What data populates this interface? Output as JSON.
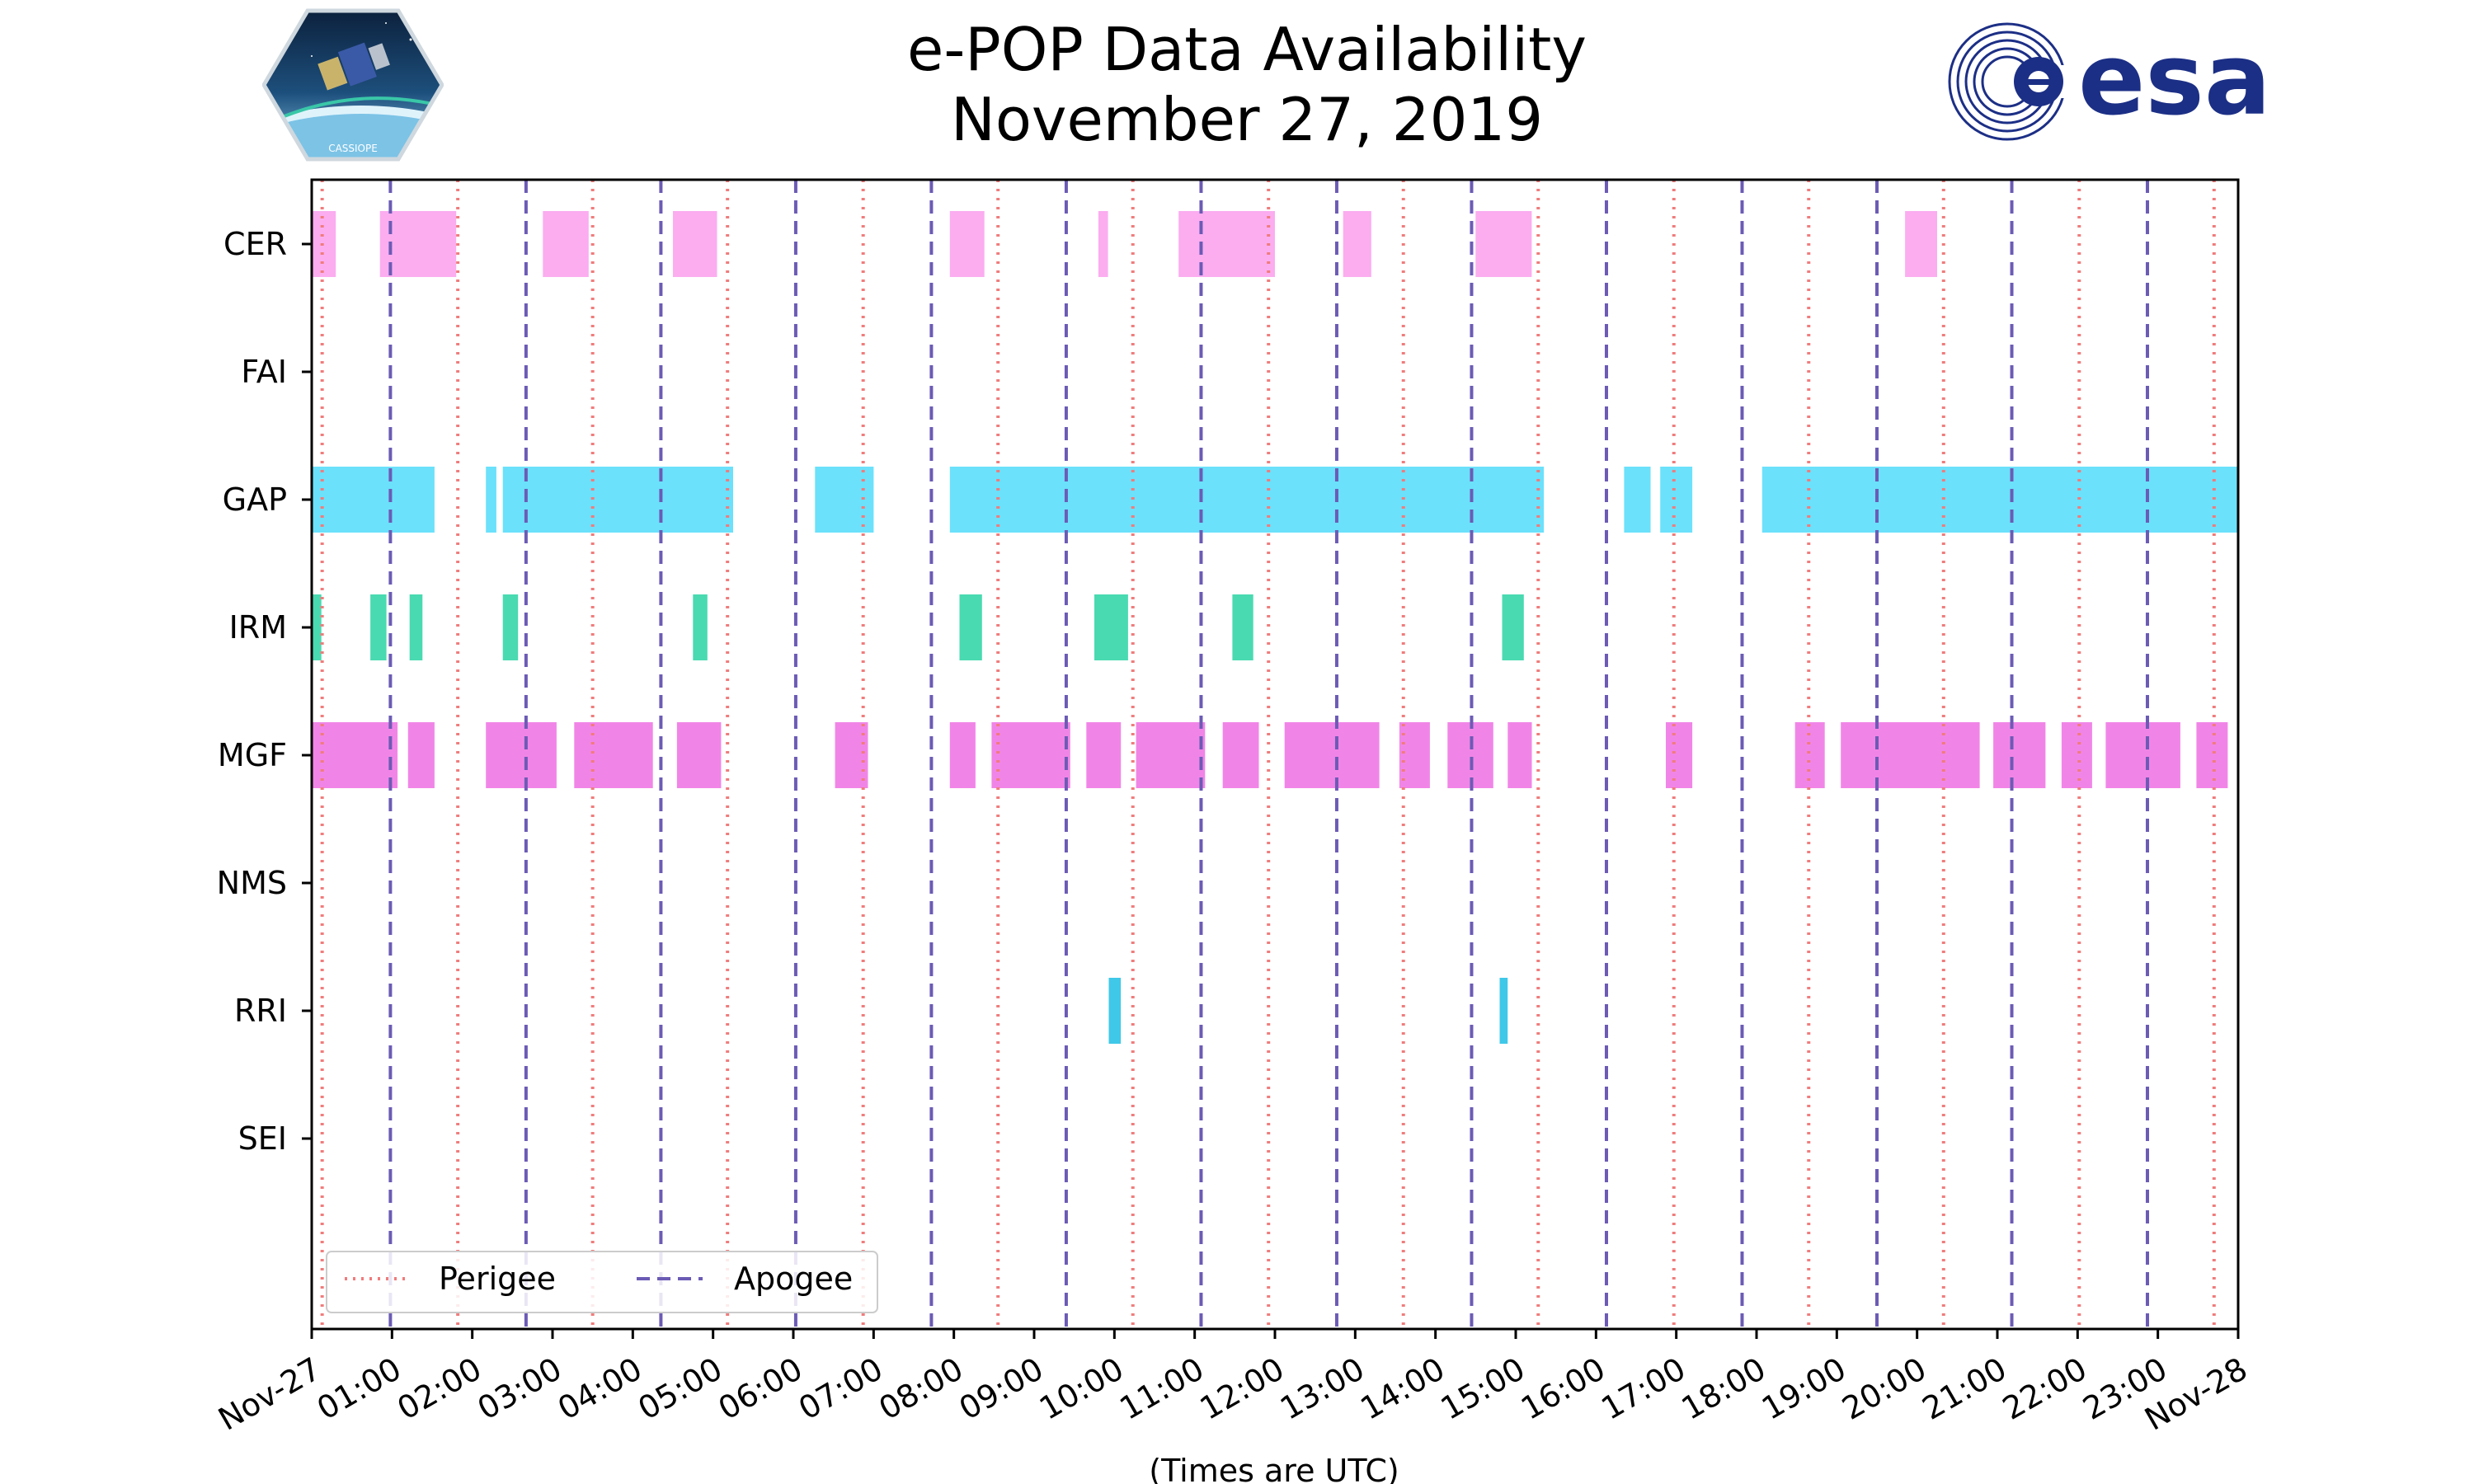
{
  "chart_data": {
    "type": "timeline",
    "title": "e-POP Data Availability",
    "subtitle": "November 27, 2019",
    "xlabel": "(Times are UTC)",
    "x_unit": "hours since 2019-11-27 00:00 UTC",
    "xlim": [
      0,
      24
    ],
    "x_ticks": [
      {
        "value": 0,
        "label": "Nov-27"
      },
      {
        "value": 1,
        "label": "01:00"
      },
      {
        "value": 2,
        "label": "02:00"
      },
      {
        "value": 3,
        "label": "03:00"
      },
      {
        "value": 4,
        "label": "04:00"
      },
      {
        "value": 5,
        "label": "05:00"
      },
      {
        "value": 6,
        "label": "06:00"
      },
      {
        "value": 7,
        "label": "07:00"
      },
      {
        "value": 8,
        "label": "08:00"
      },
      {
        "value": 9,
        "label": "09:00"
      },
      {
        "value": 10,
        "label": "10:00"
      },
      {
        "value": 11,
        "label": "11:00"
      },
      {
        "value": 12,
        "label": "12:00"
      },
      {
        "value": 13,
        "label": "13:00"
      },
      {
        "value": 14,
        "label": "14:00"
      },
      {
        "value": 15,
        "label": "15:00"
      },
      {
        "value": 16,
        "label": "16:00"
      },
      {
        "value": 17,
        "label": "17:00"
      },
      {
        "value": 18,
        "label": "18:00"
      },
      {
        "value": 19,
        "label": "19:00"
      },
      {
        "value": 20,
        "label": "20:00"
      },
      {
        "value": 21,
        "label": "21:00"
      },
      {
        "value": 22,
        "label": "22:00"
      },
      {
        "value": 23,
        "label": "23:00"
      },
      {
        "value": 24,
        "label": "Nov-28"
      }
    ],
    "instruments": [
      {
        "name": "CER",
        "color": "#fba9ef",
        "intervals": [
          [
            0.0,
            0.3
          ],
          [
            0.85,
            1.8
          ],
          [
            2.88,
            3.45
          ],
          [
            4.5,
            5.05
          ],
          [
            7.95,
            8.38
          ],
          [
            9.8,
            9.92
          ],
          [
            10.8,
            12.0
          ],
          [
            12.85,
            13.2
          ],
          [
            14.5,
            15.2
          ],
          [
            19.85,
            20.25
          ]
        ]
      },
      {
        "name": "FAI",
        "color": "#cccccc",
        "intervals": []
      },
      {
        "name": "GAP",
        "color": "#63dffb",
        "intervals": [
          [
            0.0,
            1.53
          ],
          [
            2.17,
            2.3
          ],
          [
            2.38,
            5.25
          ],
          [
            6.27,
            7.0
          ],
          [
            7.95,
            15.35
          ],
          [
            16.35,
            16.68
          ],
          [
            16.8,
            17.2
          ],
          [
            18.07,
            24.0
          ]
        ]
      },
      {
        "name": "IRM",
        "color": "#3fd8ad",
        "intervals": [
          [
            0.0,
            0.12
          ],
          [
            0.73,
            0.93
          ],
          [
            1.22,
            1.38
          ],
          [
            2.38,
            2.57
          ],
          [
            4.75,
            4.93
          ],
          [
            8.07,
            8.35
          ],
          [
            9.75,
            10.17
          ],
          [
            11.47,
            11.73
          ],
          [
            14.83,
            15.1
          ]
        ]
      },
      {
        "name": "MGF",
        "color": "#f07ee6",
        "intervals": [
          [
            0.0,
            1.07
          ],
          [
            1.2,
            1.53
          ],
          [
            2.17,
            3.05
          ],
          [
            3.27,
            4.25
          ],
          [
            4.55,
            5.1
          ],
          [
            6.52,
            6.93
          ],
          [
            7.95,
            8.27
          ],
          [
            8.47,
            9.45
          ],
          [
            9.65,
            10.08
          ],
          [
            10.27,
            11.13
          ],
          [
            11.35,
            11.8
          ],
          [
            12.12,
            13.3
          ],
          [
            13.55,
            13.93
          ],
          [
            14.15,
            14.72
          ],
          [
            14.9,
            15.2
          ],
          [
            16.87,
            17.2
          ],
          [
            18.48,
            18.85
          ],
          [
            19.05,
            20.78
          ],
          [
            20.95,
            21.6
          ],
          [
            21.8,
            22.18
          ],
          [
            22.35,
            23.28
          ],
          [
            23.48,
            23.87
          ]
        ]
      },
      {
        "name": "NMS",
        "color": "#cccccc",
        "intervals": []
      },
      {
        "name": "RRI",
        "color": "#35c5e7",
        "intervals": [
          [
            9.93,
            10.08
          ],
          [
            14.8,
            14.9
          ]
        ]
      },
      {
        "name": "SEI",
        "color": "#cccccc",
        "intervals": []
      }
    ],
    "perigee_times": [
      0.13,
      1.82,
      3.5,
      5.18,
      6.87,
      8.55,
      10.23,
      11.92,
      13.6,
      15.28,
      16.97,
      18.65,
      20.33,
      22.02,
      23.7
    ],
    "apogee_times": [
      0.98,
      2.67,
      4.35,
      6.03,
      7.72,
      9.4,
      11.08,
      12.77,
      14.45,
      16.13,
      17.82,
      19.5,
      21.18,
      22.87
    ],
    "perigee_color": "#f07c7c",
    "apogee_color": "#6c5bb5",
    "legend": {
      "perigee": "Perigee",
      "apogee": "Apogee",
      "placement": "lower-left"
    }
  },
  "logos": {
    "left": {
      "name": "CASSIOPE",
      "label": "CASSIOPE"
    },
    "right": {
      "name": "esa",
      "label": "esa",
      "color": "#1c2f86"
    }
  }
}
